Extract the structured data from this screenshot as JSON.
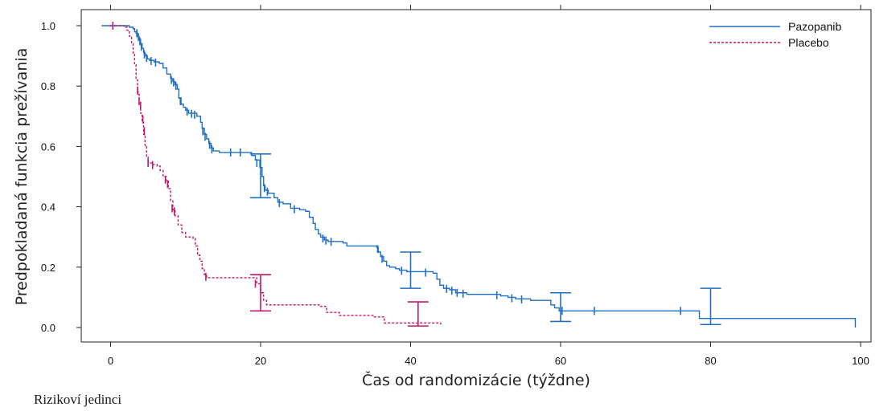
{
  "chart_data": {
    "type": "line",
    "subtype": "kaplan-meier step curve with censoring marks and confidence interval bars",
    "xlabel": "Čas od randomizácie (týždne)",
    "ylabel": "Predpokladaná funkcia prežívania",
    "xlim": [
      -4,
      101
    ],
    "ylim": [
      -0.05,
      1.03
    ],
    "x_ticks": [
      0,
      20,
      40,
      60,
      80,
      100
    ],
    "x_tick_labels": [
      "0",
      "20",
      "40",
      "60",
      "80",
      "100"
    ],
    "y_ticks": [
      0.0,
      0.2,
      0.4,
      0.6,
      0.8,
      1.0
    ],
    "y_tick_labels": [
      "0.0",
      "0.2",
      "0.4",
      "0.6",
      "0.8",
      "1.0"
    ],
    "legend_position": "top-right",
    "grid": false,
    "series": [
      {
        "name": "Pazopanib",
        "color": "#1f6fc4",
        "line_style": "solid",
        "steps": [
          [
            -1.2,
            1.0
          ],
          [
            2.5,
            0.995
          ],
          [
            3.0,
            0.99
          ],
          [
            3.2,
            0.98
          ],
          [
            3.4,
            0.975
          ],
          [
            3.6,
            0.965
          ],
          [
            3.8,
            0.955
          ],
          [
            4.0,
            0.94
          ],
          [
            4.2,
            0.925
          ],
          [
            4.4,
            0.91
          ],
          [
            4.6,
            0.9
          ],
          [
            4.9,
            0.89
          ],
          [
            5.2,
            0.885
          ],
          [
            5.8,
            0.88
          ],
          [
            6.5,
            0.875
          ],
          [
            7.0,
            0.86
          ],
          [
            7.5,
            0.84
          ],
          [
            8.0,
            0.825
          ],
          [
            8.3,
            0.815
          ],
          [
            8.6,
            0.805
          ],
          [
            8.9,
            0.79
          ],
          [
            9.1,
            0.76
          ],
          [
            9.4,
            0.74
          ],
          [
            9.7,
            0.73
          ],
          [
            10.0,
            0.72
          ],
          [
            10.4,
            0.71
          ],
          [
            11.5,
            0.7
          ],
          [
            12.0,
            0.68
          ],
          [
            12.2,
            0.66
          ],
          [
            12.5,
            0.64
          ],
          [
            12.8,
            0.625
          ],
          [
            13.1,
            0.61
          ],
          [
            13.4,
            0.595
          ],
          [
            13.7,
            0.585
          ],
          [
            14.5,
            0.58
          ],
          [
            18.0,
            0.58
          ],
          [
            18.8,
            0.57
          ],
          [
            19.3,
            0.555
          ],
          [
            19.9,
            0.53
          ],
          [
            20.2,
            0.5
          ],
          [
            20.4,
            0.47
          ],
          [
            20.6,
            0.455
          ],
          [
            21.0,
            0.445
          ],
          [
            21.8,
            0.43
          ],
          [
            22.3,
            0.415
          ],
          [
            23.0,
            0.41
          ],
          [
            24.0,
            0.395
          ],
          [
            25.2,
            0.39
          ],
          [
            26.0,
            0.385
          ],
          [
            26.5,
            0.365
          ],
          [
            27.0,
            0.345
          ],
          [
            27.3,
            0.325
          ],
          [
            27.7,
            0.31
          ],
          [
            28.0,
            0.3
          ],
          [
            28.5,
            0.29
          ],
          [
            29.0,
            0.285
          ],
          [
            31.0,
            0.28
          ],
          [
            31.5,
            0.27
          ],
          [
            35.5,
            0.265
          ],
          [
            35.7,
            0.25
          ],
          [
            36.0,
            0.235
          ],
          [
            36.4,
            0.22
          ],
          [
            36.8,
            0.205
          ],
          [
            37.2,
            0.2
          ],
          [
            38.0,
            0.195
          ],
          [
            38.5,
            0.19
          ],
          [
            39.5,
            0.185
          ],
          [
            43.0,
            0.18
          ],
          [
            43.5,
            0.16
          ],
          [
            43.9,
            0.14
          ],
          [
            44.4,
            0.13
          ],
          [
            45.2,
            0.125
          ],
          [
            46.0,
            0.115
          ],
          [
            47.5,
            0.11
          ],
          [
            52.0,
            0.105
          ],
          [
            53.0,
            0.1
          ],
          [
            54.0,
            0.095
          ],
          [
            56.0,
            0.09
          ],
          [
            58.3,
            0.09
          ],
          [
            58.7,
            0.075
          ],
          [
            59.2,
            0.065
          ],
          [
            59.8,
            0.055
          ],
          [
            60.5,
            0.055
          ],
          [
            78.2,
            0.055
          ],
          [
            78.5,
            0.03
          ],
          [
            99.0,
            0.03
          ],
          [
            99.3,
            0.0
          ]
        ],
        "censor_marks": [
          [
            3.5,
            0.975
          ],
          [
            3.7,
            0.962
          ],
          [
            3.9,
            0.948
          ],
          [
            4.1,
            0.93
          ],
          [
            4.5,
            0.905
          ],
          [
            4.8,
            0.893
          ],
          [
            5.4,
            0.883
          ],
          [
            6.0,
            0.878
          ],
          [
            8.1,
            0.82
          ],
          [
            8.4,
            0.812
          ],
          [
            8.7,
            0.8
          ],
          [
            9.3,
            0.75
          ],
          [
            10.2,
            0.715
          ],
          [
            10.8,
            0.708
          ],
          [
            11.2,
            0.705
          ],
          [
            12.3,
            0.65
          ],
          [
            12.6,
            0.632
          ],
          [
            13.2,
            0.605
          ],
          [
            13.5,
            0.59
          ],
          [
            16.0,
            0.58
          ],
          [
            17.3,
            0.58
          ],
          [
            19.5,
            0.545
          ],
          [
            20.5,
            0.462
          ],
          [
            20.9,
            0.45
          ],
          [
            22.5,
            0.412
          ],
          [
            24.5,
            0.392
          ],
          [
            28.3,
            0.295
          ],
          [
            28.7,
            0.288
          ],
          [
            29.4,
            0.284
          ],
          [
            35.6,
            0.26
          ],
          [
            36.2,
            0.228
          ],
          [
            38.8,
            0.188
          ],
          [
            42.0,
            0.182
          ],
          [
            44.8,
            0.128
          ],
          [
            45.5,
            0.122
          ],
          [
            46.2,
            0.115
          ],
          [
            47.0,
            0.112
          ],
          [
            51.5,
            0.107
          ],
          [
            53.5,
            0.097
          ],
          [
            54.8,
            0.093
          ],
          [
            60.2,
            0.055
          ],
          [
            64.5,
            0.055
          ],
          [
            76.0,
            0.055
          ]
        ],
        "ci_bars": [
          [
            20,
            0.43,
            0.575
          ],
          [
            40,
            0.13,
            0.25
          ],
          [
            60,
            0.02,
            0.115
          ],
          [
            80,
            0.01,
            0.13
          ]
        ]
      },
      {
        "name": "Placebo",
        "color": "#c0176c",
        "line_style": "dashed",
        "steps": [
          [
            0,
            1.0
          ],
          [
            1.8,
            0.995
          ],
          [
            2.2,
            0.985
          ],
          [
            2.5,
            0.965
          ],
          [
            2.8,
            0.94
          ],
          [
            3.0,
            0.91
          ],
          [
            3.2,
            0.87
          ],
          [
            3.4,
            0.82
          ],
          [
            3.6,
            0.78
          ],
          [
            3.8,
            0.74
          ],
          [
            4.0,
            0.71
          ],
          [
            4.2,
            0.68
          ],
          [
            4.4,
            0.64
          ],
          [
            4.6,
            0.6
          ],
          [
            4.8,
            0.565
          ],
          [
            5.0,
            0.545
          ],
          [
            5.5,
            0.54
          ],
          [
            6.2,
            0.535
          ],
          [
            6.6,
            0.52
          ],
          [
            7.0,
            0.5
          ],
          [
            7.4,
            0.485
          ],
          [
            7.7,
            0.46
          ],
          [
            8.0,
            0.42
          ],
          [
            8.3,
            0.39
          ],
          [
            8.6,
            0.37
          ],
          [
            9.0,
            0.34
          ],
          [
            9.5,
            0.315
          ],
          [
            10.0,
            0.3
          ],
          [
            11.0,
            0.295
          ],
          [
            11.3,
            0.27
          ],
          [
            11.6,
            0.24
          ],
          [
            11.9,
            0.22
          ],
          [
            12.2,
            0.195
          ],
          [
            12.5,
            0.175
          ],
          [
            12.8,
            0.165
          ],
          [
            19.5,
            0.145
          ],
          [
            20.0,
            0.115
          ],
          [
            20.4,
            0.09
          ],
          [
            20.8,
            0.075
          ],
          [
            24.5,
            0.075
          ],
          [
            28.0,
            0.07
          ],
          [
            28.8,
            0.05
          ],
          [
            30.5,
            0.04
          ],
          [
            35.0,
            0.035
          ],
          [
            36.5,
            0.015
          ],
          [
            44.0,
            0.01
          ]
        ],
        "censor_marks": [
          [
            0.3,
            1.0
          ],
          [
            3.6,
            0.785
          ],
          [
            3.8,
            0.75
          ],
          [
            4.0,
            0.735
          ],
          [
            4.3,
            0.69
          ],
          [
            4.5,
            0.65
          ],
          [
            5.0,
            0.545
          ],
          [
            5.6,
            0.538
          ],
          [
            7.3,
            0.49
          ],
          [
            7.6,
            0.475
          ],
          [
            8.2,
            0.395
          ],
          [
            8.5,
            0.385
          ],
          [
            12.7,
            0.168
          ],
          [
            19.3,
            0.145
          ]
        ],
        "ci_bars": [
          [
            20,
            0.055,
            0.175
          ],
          [
            41,
            0.005,
            0.085
          ]
        ]
      }
    ]
  },
  "footer": {
    "risk_table_label": "Rizikoví jedinci"
  }
}
